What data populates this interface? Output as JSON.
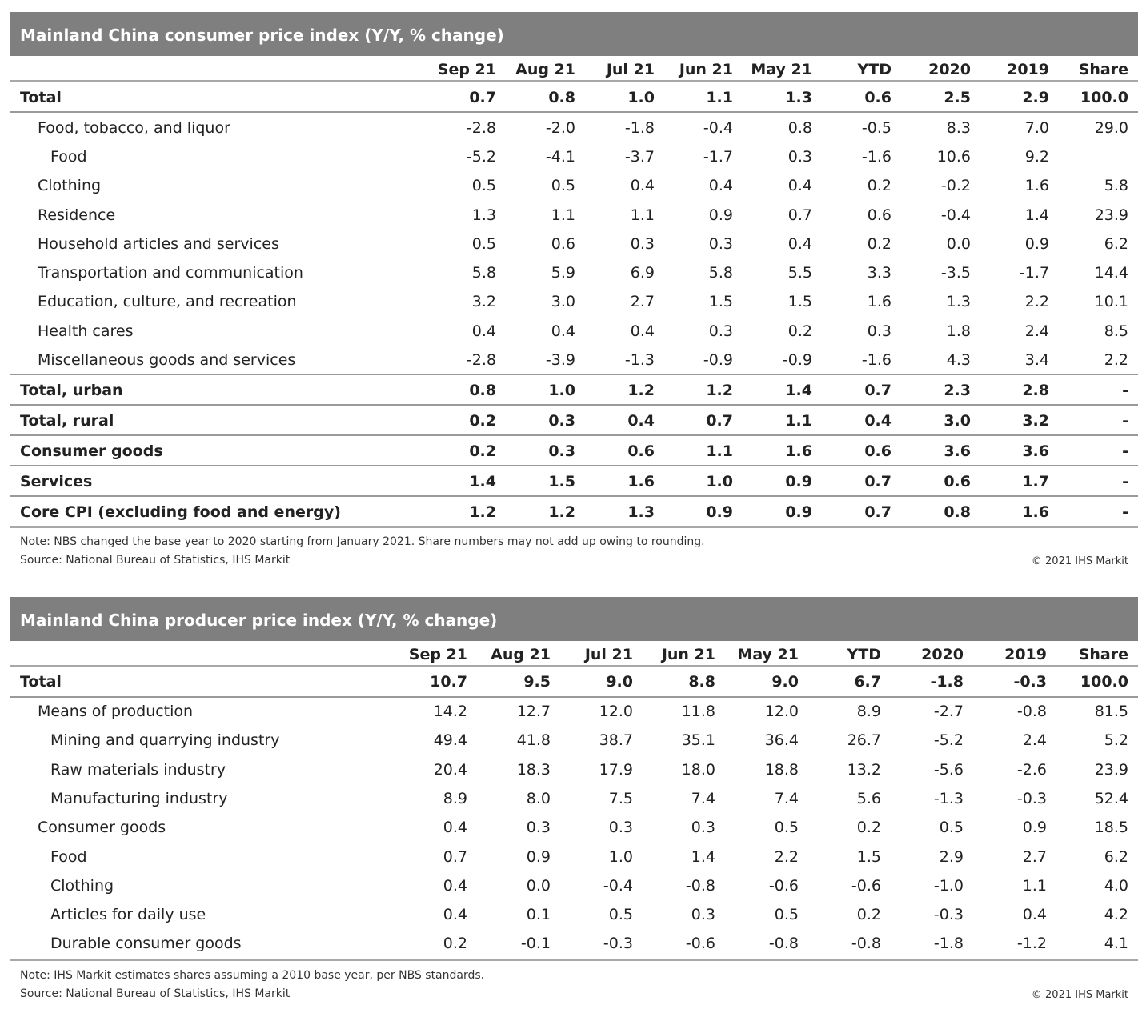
{
  "cpi": {
    "title": "Mainland China consumer price index (Y/Y, % change)",
    "columns": [
      "Sep 21",
      "Aug 21",
      "Jul 21",
      "Jun 21",
      "May 21",
      "YTD",
      "2020",
      "2019",
      "Share"
    ],
    "rows": [
      {
        "label": "Total",
        "values": [
          "0.7",
          "0.8",
          "1.0",
          "1.1",
          "1.3",
          "0.6",
          "2.5",
          "2.9",
          "100.0"
        ]
      },
      {
        "label": "Food, tobacco, and liquor",
        "values": [
          "-2.8",
          "-2.0",
          "-1.8",
          "-0.4",
          "0.8",
          "-0.5",
          "8.3",
          "7.0",
          "29.0"
        ]
      },
      {
        "label": "Food",
        "values": [
          "-5.2",
          "-4.1",
          "-3.7",
          "-1.7",
          "0.3",
          "-1.6",
          "10.6",
          "9.2",
          ""
        ]
      },
      {
        "label": "Clothing",
        "values": [
          "0.5",
          "0.5",
          "0.4",
          "0.4",
          "0.4",
          "0.2",
          "-0.2",
          "1.6",
          "5.8"
        ]
      },
      {
        "label": "Residence",
        "values": [
          "1.3",
          "1.1",
          "1.1",
          "0.9",
          "0.7",
          "0.6",
          "-0.4",
          "1.4",
          "23.9"
        ]
      },
      {
        "label": "Household articles and services",
        "values": [
          "0.5",
          "0.6",
          "0.3",
          "0.3",
          "0.4",
          "0.2",
          "0.0",
          "0.9",
          "6.2"
        ]
      },
      {
        "label": "Transportation and communication",
        "values": [
          "5.8",
          "5.9",
          "6.9",
          "5.8",
          "5.5",
          "3.3",
          "-3.5",
          "-1.7",
          "14.4"
        ]
      },
      {
        "label": "Education, culture, and recreation",
        "values": [
          "3.2",
          "3.0",
          "2.7",
          "1.5",
          "1.5",
          "1.6",
          "1.3",
          "2.2",
          "10.1"
        ]
      },
      {
        "label": "Health cares",
        "values": [
          "0.4",
          "0.4",
          "0.4",
          "0.3",
          "0.2",
          "0.3",
          "1.8",
          "2.4",
          "8.5"
        ]
      },
      {
        "label": "Miscellaneous goods and services",
        "values": [
          "-2.8",
          "-3.9",
          "-1.3",
          "-0.9",
          "-0.9",
          "-1.6",
          "4.3",
          "3.4",
          "2.2"
        ]
      },
      {
        "label": "Total, urban",
        "values": [
          "0.8",
          "1.0",
          "1.2",
          "1.2",
          "1.4",
          "0.7",
          "2.3",
          "2.8",
          "-"
        ]
      },
      {
        "label": "Total, rural",
        "values": [
          "0.2",
          "0.3",
          "0.4",
          "0.7",
          "1.1",
          "0.4",
          "3.0",
          "3.2",
          "-"
        ]
      },
      {
        "label": "Consumer goods",
        "values": [
          "0.2",
          "0.3",
          "0.6",
          "1.1",
          "1.6",
          "0.6",
          "3.6",
          "3.6",
          "-"
        ]
      },
      {
        "label": "Services",
        "values": [
          "1.4",
          "1.5",
          "1.6",
          "1.0",
          "0.9",
          "0.7",
          "0.6",
          "1.7",
          "-"
        ]
      },
      {
        "label": "Core CPI (excluding food and energy)",
        "values": [
          "1.2",
          "1.2",
          "1.3",
          "0.9",
          "0.9",
          "0.7",
          "0.8",
          "1.6",
          "-"
        ]
      }
    ],
    "note": "Note: NBS changed the base year to 2020 starting from January 2021. Share numbers may not add up owing to rounding.",
    "source": "Source: National Bureau of Statistics, IHS Markit",
    "copyright": "© 2021 IHS Markit"
  },
  "ppi": {
    "title": "Mainland China producer price index (Y/Y, % change)",
    "columns": [
      "Sep 21",
      "Aug 21",
      "Jul 21",
      "Jun 21",
      "May 21",
      "YTD",
      "2020",
      "2019",
      "Share"
    ],
    "rows": [
      {
        "label": "Total",
        "values": [
          "10.7",
          "9.5",
          "9.0",
          "8.8",
          "9.0",
          "6.7",
          "-1.8",
          "-0.3",
          "100.0"
        ]
      },
      {
        "label": "Means of production",
        "values": [
          "14.2",
          "12.7",
          "12.0",
          "11.8",
          "12.0",
          "8.9",
          "-2.7",
          "-0.8",
          "81.5"
        ]
      },
      {
        "label": "Mining and quarrying industry",
        "values": [
          "49.4",
          "41.8",
          "38.7",
          "35.1",
          "36.4",
          "26.7",
          "-5.2",
          "2.4",
          "5.2"
        ]
      },
      {
        "label": "Raw materials industry",
        "values": [
          "20.4",
          "18.3",
          "17.9",
          "18.0",
          "18.8",
          "13.2",
          "-5.6",
          "-2.6",
          "23.9"
        ]
      },
      {
        "label": "Manufacturing industry",
        "values": [
          "8.9",
          "8.0",
          "7.5",
          "7.4",
          "7.4",
          "5.6",
          "-1.3",
          "-0.3",
          "52.4"
        ]
      },
      {
        "label": "Consumer goods",
        "values": [
          "0.4",
          "0.3",
          "0.3",
          "0.3",
          "0.5",
          "0.2",
          "0.5",
          "0.9",
          "18.5"
        ]
      },
      {
        "label": "Food",
        "values": [
          "0.7",
          "0.9",
          "1.0",
          "1.4",
          "2.2",
          "1.5",
          "2.9",
          "2.7",
          "6.2"
        ]
      },
      {
        "label": "Clothing",
        "values": [
          "0.4",
          "0.0",
          "-0.4",
          "-0.8",
          "-0.6",
          "-0.6",
          "-1.0",
          "1.1",
          "4.0"
        ]
      },
      {
        "label": "Articles for daily use",
        "values": [
          "0.4",
          "0.1",
          "0.5",
          "0.3",
          "0.5",
          "0.2",
          "-0.3",
          "0.4",
          "4.2"
        ]
      },
      {
        "label": "Durable consumer goods",
        "values": [
          "0.2",
          "-0.1",
          "-0.3",
          "-0.6",
          "-0.8",
          "-0.8",
          "-1.8",
          "-1.2",
          "4.1"
        ]
      }
    ],
    "note": "Note: IHS Markit estimates shares assuming a 2010 base year, per NBS standards.",
    "source": "Source: National Bureau of Statistics, IHS Markit",
    "copyright": "© 2021 IHS Markit"
  }
}
